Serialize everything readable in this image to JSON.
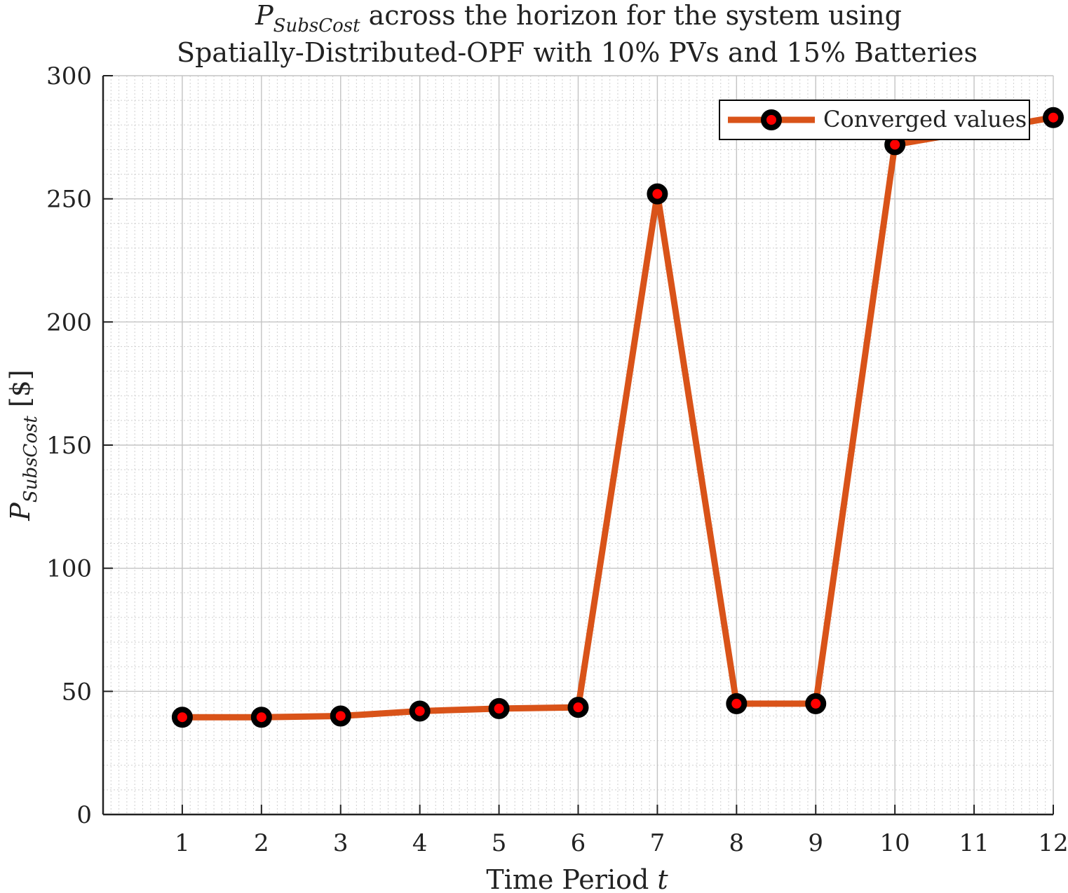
{
  "chart_data": {
    "type": "line",
    "title": {
      "line1_symbol": "P",
      "line1_subscript": "SubsCost",
      "line1_rest": " across the horizon for the system using",
      "line2": "Spatially-Distributed-OPF with 10% PVs and 15% Batteries"
    },
    "xlabel": {
      "text": "Time Period ",
      "variable": "t"
    },
    "ylabel": {
      "symbol": "P",
      "subscript": "SubsCost",
      "unit": " [$]"
    },
    "x_ticks": [
      "1",
      "2",
      "3",
      "4",
      "5",
      "6",
      "7",
      "8",
      "9",
      "10",
      "11",
      "12"
    ],
    "y_ticks": [
      "0",
      "50",
      "100",
      "150",
      "200",
      "250",
      "300"
    ],
    "xlim": [
      0,
      12
    ],
    "ylim": [
      0,
      300
    ],
    "grid": true,
    "minor_grid": true,
    "legend_position": "top-right",
    "series": [
      {
        "name": "Converged values",
        "color": "#d95319",
        "marker_color": "#ff0000",
        "marker_edge": "#000000",
        "x": [
          1,
          2,
          3,
          4,
          5,
          6,
          7,
          8,
          9,
          10,
          11,
          12
        ],
        "values": [
          39.5,
          39.5,
          40,
          42,
          43,
          43.5,
          252,
          45,
          45,
          272,
          null,
          283
        ]
      }
    ]
  }
}
